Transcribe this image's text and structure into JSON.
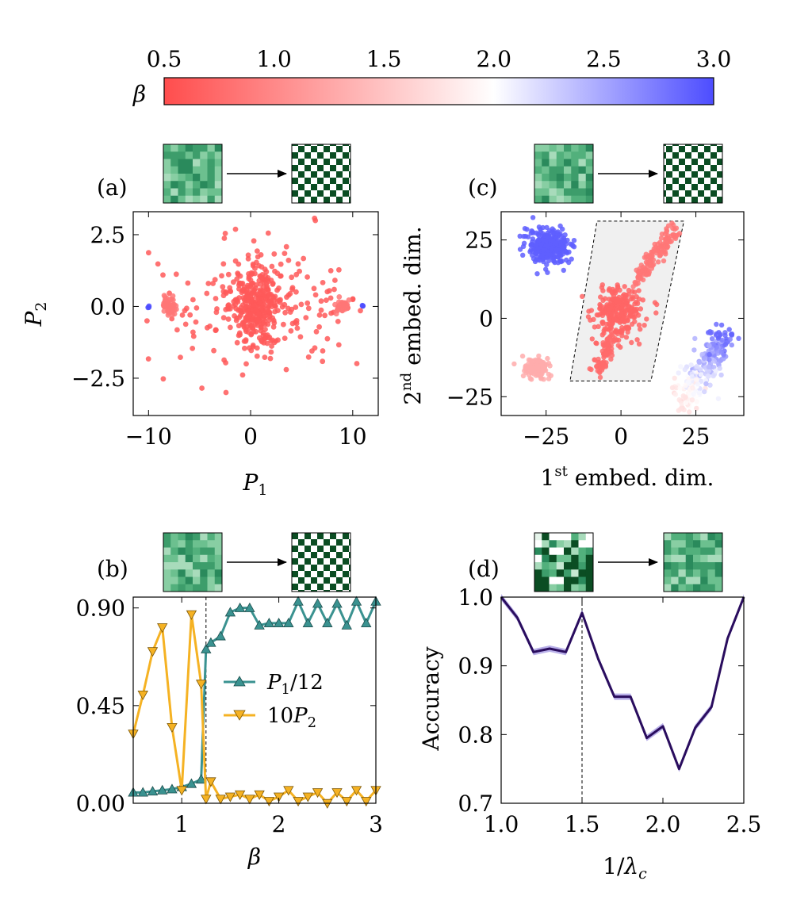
{
  "colorbar": {
    "label": "β",
    "ticks": [
      "0.5",
      "1.0",
      "1.5",
      "2.0",
      "2.5",
      "3.0"
    ],
    "range": [
      0.5,
      3.0
    ],
    "colors": {
      "low": "#ff4d4d",
      "mid": "#ffffff",
      "high": "#4d4dff"
    }
  },
  "panels": {
    "a": {
      "label": "(a)"
    },
    "b": {
      "label": "(b)"
    },
    "c": {
      "label": "(c)"
    },
    "d": {
      "label": "(d)"
    }
  },
  "chart_data": [
    {
      "id": "a",
      "type": "scatter",
      "title": "(a)",
      "xlabel": "P1",
      "ylabel": "P2",
      "xlim": [
        -11.5,
        12.5
      ],
      "ylim": [
        -3.8,
        3.3
      ],
      "xticks": [
        {
          "v": -10,
          "t": "−10"
        },
        {
          "v": 0,
          "t": "0"
        },
        {
          "v": 10,
          "t": "10"
        }
      ],
      "yticks": [
        {
          "v": -2.5,
          "t": "−2.5"
        },
        {
          "v": 0,
          "t": "0.0"
        },
        {
          "v": 2.5,
          "t": "2.5"
        }
      ],
      "clusters": [
        {
          "name": "center",
          "cx": 0.5,
          "cy": 0.0,
          "sx": 0.9,
          "sy": 0.6,
          "n": 260,
          "beta": 0.6
        },
        {
          "name": "spread",
          "cx": 0.5,
          "cy": 0.0,
          "sx": 5.0,
          "sy": 1.0,
          "n": 230,
          "beta": 0.6
        },
        {
          "name": "left-lobe",
          "cx": -8.0,
          "cy": 0.0,
          "sx": 0.35,
          "sy": 0.15,
          "n": 60,
          "beta": 0.85
        },
        {
          "name": "right-lobe",
          "cx": 9.0,
          "cy": 0.0,
          "sx": 0.35,
          "sy": 0.12,
          "n": 40,
          "beta": 0.85
        },
        {
          "name": "left-dot",
          "cx": -10.0,
          "cy": 0.0,
          "sx": 0.05,
          "sy": 0.02,
          "n": 3,
          "beta": 3.0
        },
        {
          "name": "right-dot",
          "cx": 11.0,
          "cy": 0.0,
          "sx": 0.05,
          "sy": 0.02,
          "n": 3,
          "beta": 3.0
        }
      ]
    },
    {
      "id": "b",
      "type": "line",
      "title": "(b)",
      "xlabel": "β",
      "ylabel": "",
      "xlim": [
        0.5,
        3.0
      ],
      "ylim": [
        0.0,
        0.95
      ],
      "xticks": [
        {
          "v": 1,
          "t": "1"
        },
        {
          "v": 2,
          "t": "2"
        },
        {
          "v": 3,
          "t": "3"
        }
      ],
      "yticks": [
        {
          "v": 0,
          "t": "0.00"
        },
        {
          "v": 0.45,
          "t": "0.45"
        },
        {
          "v": 0.9,
          "t": "0.90"
        }
      ],
      "vline": 1.25,
      "series": [
        {
          "name": "P1/12",
          "color": "#3a9290",
          "marker": "triangle-up",
          "x": [
            0.5,
            0.6,
            0.7,
            0.8,
            0.9,
            1.0,
            1.1,
            1.2,
            1.25,
            1.3,
            1.4,
            1.5,
            1.6,
            1.7,
            1.8,
            1.9,
            2.0,
            2.1,
            2.2,
            2.3,
            2.4,
            2.5,
            2.6,
            2.7,
            2.8,
            2.9,
            3.0
          ],
          "y": [
            0.05,
            0.05,
            0.055,
            0.06,
            0.065,
            0.075,
            0.09,
            0.11,
            0.71,
            0.74,
            0.77,
            0.88,
            0.9,
            0.9,
            0.82,
            0.83,
            0.83,
            0.83,
            0.93,
            0.83,
            0.92,
            0.83,
            0.92,
            0.82,
            0.93,
            0.83,
            0.93
          ]
        },
        {
          "name": "10P2",
          "color": "#f5b223",
          "marker": "triangle-down",
          "x": [
            0.5,
            0.6,
            0.7,
            0.8,
            0.9,
            1.0,
            1.1,
            1.2,
            1.25,
            1.3,
            1.4,
            1.5,
            1.6,
            1.7,
            1.8,
            1.9,
            2.0,
            2.1,
            2.2,
            2.3,
            2.4,
            2.5,
            2.6,
            2.7,
            2.8,
            2.9,
            3.0
          ],
          "y": [
            0.32,
            0.5,
            0.7,
            0.81,
            0.35,
            0.06,
            0.87,
            0.55,
            0.02,
            0.1,
            0.02,
            0.03,
            0.04,
            0.02,
            0.04,
            0.01,
            0.03,
            0.06,
            0.01,
            0.03,
            0.05,
            0.0,
            0.05,
            0.01,
            0.06,
            0.01,
            0.06
          ]
        }
      ],
      "legend": [
        {
          "text": "P1/12"
        },
        {
          "text": "10P2"
        }
      ]
    },
    {
      "id": "c",
      "type": "scatter",
      "title": "(c)",
      "xlabel": "1st embed. dim.",
      "ylabel": "2nd embed. dim.",
      "xlim": [
        -40,
        41
      ],
      "ylim": [
        -31,
        34
      ],
      "xticks": [
        {
          "v": -25,
          "t": "−25"
        },
        {
          "v": 0,
          "t": "0"
        },
        {
          "v": 25,
          "t": "25"
        }
      ],
      "yticks": [
        {
          "v": -25,
          "t": "−25"
        },
        {
          "v": 0,
          "t": "0"
        },
        {
          "v": 25,
          "t": "25"
        }
      ],
      "region": [
        [
          -17,
          -20
        ],
        [
          10,
          -20
        ],
        [
          21,
          31
        ],
        [
          -8,
          31
        ]
      ],
      "clusters": [
        {
          "name": "top-left-blue",
          "cx": -24,
          "cy": 23,
          "sx": 3.5,
          "sy": 2.6,
          "n": 320,
          "beta": 2.9
        },
        {
          "name": "bottom-left-pink",
          "cx": -28,
          "cy": -16,
          "sx": 2.3,
          "sy": 1.6,
          "n": 120,
          "beta": 1.3
        },
        {
          "name": "center-red",
          "cx": -1,
          "cy": 2,
          "sx": 3.8,
          "sy": 4.2,
          "n": 260,
          "beta": 0.7
        },
        {
          "name": "diag-up",
          "line": [
            [
              5,
              11
            ],
            [
              17,
              28
            ]
          ],
          "jitter": 1.4,
          "n": 140,
          "beta": 0.85
        },
        {
          "name": "diag-down",
          "line": [
            [
              -3,
              -6
            ],
            [
              -8,
              -18
            ]
          ],
          "jitter": 1.2,
          "n": 70,
          "beta": 0.75
        },
        {
          "name": "right-blue-tail",
          "line": [
            [
              34,
              -5
            ],
            [
              21,
              -27
            ]
          ],
          "jitter": 2.6,
          "n": 260,
          "beta_range": [
            2.9,
            1.7
          ]
        }
      ]
    },
    {
      "id": "d",
      "type": "line",
      "title": "(d)",
      "xlabel": "1/λc",
      "ylabel": "Accuracy",
      "xlim": [
        1.0,
        2.5
      ],
      "ylim": [
        0.7,
        1.0
      ],
      "xticks": [
        {
          "v": 1.0,
          "t": "1.0"
        },
        {
          "v": 1.5,
          "t": "1.5"
        },
        {
          "v": 2.0,
          "t": "2.0"
        },
        {
          "v": 2.5,
          "t": "2.5"
        }
      ],
      "yticks": [
        {
          "v": 0.7,
          "t": "0.7"
        },
        {
          "v": 0.8,
          "t": "0.8"
        },
        {
          "v": 0.9,
          "t": "0.9"
        },
        {
          "v": 1.0,
          "t": "1.0"
        }
      ],
      "vline": 1.5,
      "series": [
        {
          "name": "accuracy",
          "color": "#2a0d5e",
          "band": "#9b8fe0",
          "x": [
            1.0,
            1.1,
            1.2,
            1.3,
            1.4,
            1.5,
            1.6,
            1.7,
            1.8,
            1.9,
            2.0,
            2.1,
            2.2,
            2.3,
            2.4,
            2.5
          ],
          "y": [
            1.0,
            0.97,
            0.92,
            0.925,
            0.92,
            0.977,
            0.91,
            0.855,
            0.855,
            0.795,
            0.812,
            0.75,
            0.81,
            0.84,
            0.94,
            1.0
          ]
        }
      ]
    }
  ]
}
